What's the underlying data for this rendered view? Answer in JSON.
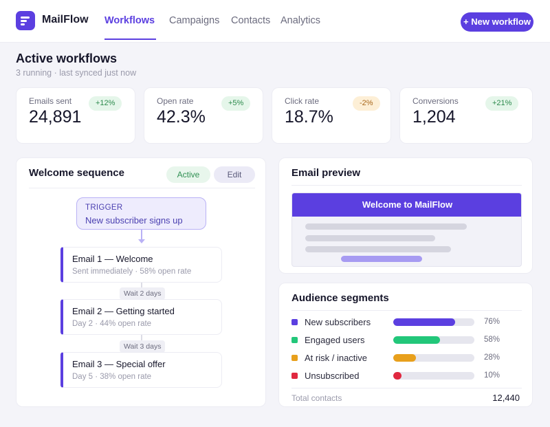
{
  "app": {
    "name": "MailFlow"
  },
  "nav": {
    "items": [
      {
        "label": "Workflows",
        "active": true
      },
      {
        "label": "Campaigns",
        "active": false
      },
      {
        "label": "Contacts",
        "active": false
      },
      {
        "label": "Analytics",
        "active": false
      }
    ],
    "new_button": "+ New workflow"
  },
  "page": {
    "title": "Active workflows",
    "subtitle": "3 running · last synced just now"
  },
  "stats": [
    {
      "label": "Emails sent",
      "value": "24,891",
      "delta": "+12%",
      "trend": "up"
    },
    {
      "label": "Open rate",
      "value": "42.3%",
      "delta": "+5%",
      "trend": "up"
    },
    {
      "label": "Click rate",
      "value": "18.7%",
      "delta": "-2%",
      "trend": "down"
    },
    {
      "label": "Conversions",
      "value": "1,204",
      "delta": "+21%",
      "trend": "up"
    }
  ],
  "sequence": {
    "title": "Welcome sequence",
    "status": "Active",
    "edit_label": "Edit",
    "trigger": {
      "label": "TRIGGER",
      "value": "New subscriber signs up"
    },
    "emails": [
      {
        "title": "Email 1 — Welcome",
        "detail": "Sent immediately · 58% open rate"
      },
      {
        "title": "Email 2 — Getting started",
        "detail": "Day 2 · 44% open rate"
      },
      {
        "title": "Email 3 — Special offer",
        "detail": "Day 5 · 38% open rate"
      }
    ],
    "waits": [
      "Wait 2 days",
      "Wait 3 days"
    ]
  },
  "preview": {
    "title": "Email preview",
    "header": "Welcome to MailFlow"
  },
  "segments": {
    "title": "Audience segments",
    "items": [
      {
        "name": "New subscribers",
        "percent": 76,
        "label": "76%",
        "color": "#5b3fe0"
      },
      {
        "name": "Engaged users",
        "percent": 58,
        "label": "58%",
        "color": "#22c77a"
      },
      {
        "name": "At risk / inactive",
        "percent": 28,
        "label": "28%",
        "color": "#e8a01c"
      },
      {
        "name": "Unsubscribed",
        "percent": 10,
        "label": "10%",
        "color": "#e0283f"
      }
    ],
    "total_label": "Total contacts",
    "total_value": "12,440"
  },
  "colors": {
    "accent": "#5b3fe0"
  }
}
